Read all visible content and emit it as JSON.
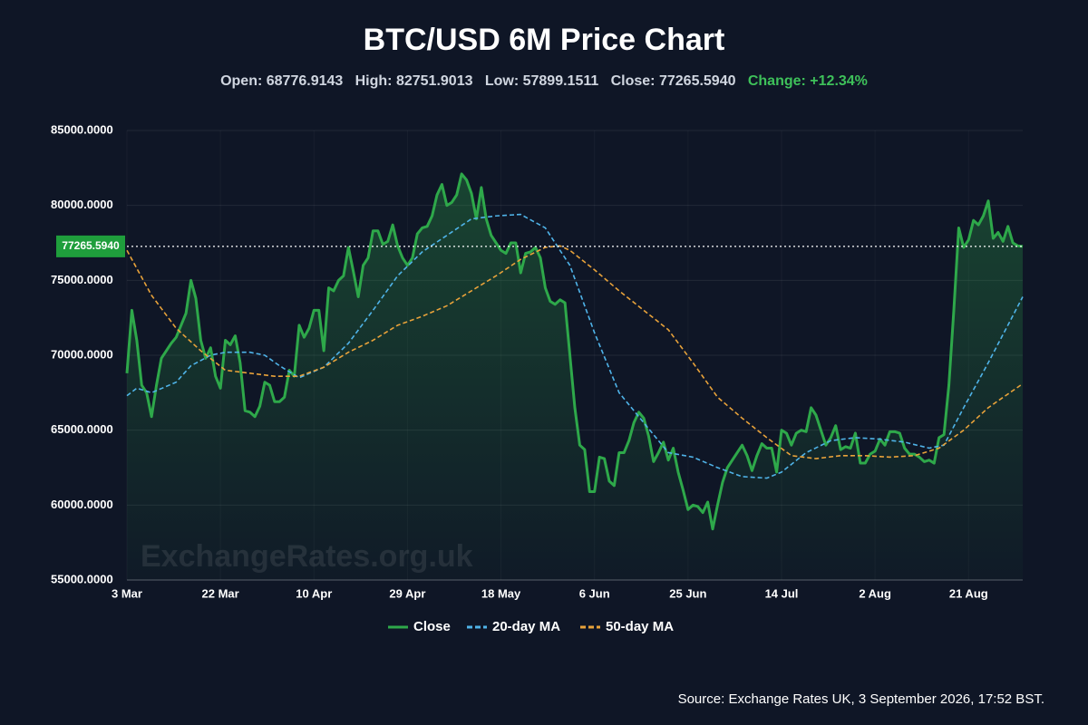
{
  "chart_data": {
    "type": "line",
    "title": "BTC/USD 6M Price Chart",
    "stats": [
      {
        "label": "Open:",
        "value": "68776.9143"
      },
      {
        "label": "High:",
        "value": "82751.9013"
      },
      {
        "label": "Low:",
        "value": "57899.1511"
      },
      {
        "label": "Close:",
        "value": "77265.5940"
      }
    ],
    "change": {
      "label": "Change:",
      "value": "+12.34%"
    },
    "watermark": "ExchangeRates.org.uk",
    "source": "Source: Exchange Rates UK, 3 September 2026, 17:52 BST.",
    "price_line": {
      "value": 77265.594,
      "label": "77265.5940"
    },
    "ylim": [
      55000,
      85000
    ],
    "yticks": [
      {
        "value": 55000,
        "label": "55000.0000"
      },
      {
        "value": 60000,
        "label": "60000.0000"
      },
      {
        "value": 65000,
        "label": "65000.0000"
      },
      {
        "value": 70000,
        "label": "70000.0000"
      },
      {
        "value": 75000,
        "label": "75000.0000"
      },
      {
        "value": 80000,
        "label": "80000.0000"
      },
      {
        "value": 85000,
        "label": "85000.0000"
      }
    ],
    "grid": true,
    "categories": [
      "3 Mar",
      null,
      null,
      null,
      null,
      null,
      null,
      null,
      null,
      null,
      null,
      null,
      null,
      null,
      null,
      null,
      null,
      null,
      null,
      "22 Mar",
      null,
      null,
      null,
      null,
      null,
      null,
      null,
      null,
      null,
      null,
      null,
      null,
      null,
      null,
      null,
      null,
      null,
      null,
      "10 Apr",
      null,
      null,
      null,
      null,
      null,
      null,
      null,
      null,
      null,
      null,
      null,
      null,
      null,
      null,
      null,
      null,
      null,
      null,
      "29 Apr",
      null,
      null,
      null,
      null,
      null,
      null,
      null,
      null,
      null,
      null,
      null,
      null,
      null,
      null,
      null,
      null,
      null,
      null,
      "18 May",
      null,
      null,
      null,
      null,
      null,
      null,
      null,
      null,
      null,
      null,
      null,
      null,
      null,
      null,
      null,
      null,
      null,
      null,
      "6 Jun",
      null,
      null,
      null,
      null,
      null,
      null,
      null,
      null,
      null,
      null,
      null,
      null,
      null,
      null,
      null,
      null,
      null,
      null,
      "25 Jun",
      null,
      null,
      null,
      null,
      null,
      null,
      null,
      null,
      null,
      null,
      null,
      null,
      null,
      null,
      null,
      null,
      null,
      null,
      "14 Jul",
      null,
      null,
      null,
      null,
      null,
      null,
      null,
      null,
      null,
      null,
      null,
      null,
      null,
      null,
      null,
      null,
      null,
      null,
      "2 Aug",
      null,
      null,
      null,
      null,
      null,
      null,
      null,
      null,
      null,
      null,
      null,
      null,
      null,
      null,
      null,
      null,
      null,
      null,
      "21 Aug",
      null,
      null,
      null,
      null,
      null,
      null,
      null,
      null,
      null,
      null,
      null
    ],
    "series": [
      {
        "name": "Close",
        "color": "#2ea84a",
        "dashed": false,
        "values": [
          68800,
          73000,
          71000,
          68000,
          67500,
          65900,
          68000,
          69800,
          70300,
          70800,
          71200,
          72000,
          72800,
          75000,
          73800,
          71000,
          69800,
          70500,
          68600,
          67800,
          71000,
          70700,
          71300,
          69500,
          66300,
          66200,
          65900,
          66600,
          68200,
          68000,
          66900,
          66900,
          67200,
          69000,
          68600,
          72000,
          71200,
          71800,
          73000,
          73000,
          70300,
          74500,
          74300,
          75000,
          75300,
          77200,
          75600,
          73900,
          76000,
          76500,
          78300,
          78300,
          77400,
          77600,
          78700,
          77300,
          76500,
          76000,
          76500,
          78100,
          78500,
          78600,
          79300,
          80700,
          81400,
          80000,
          80200,
          80700,
          82100,
          81700,
          80800,
          79100,
          81200,
          79100,
          78000,
          77500,
          77000,
          76800,
          77500,
          77500,
          75500,
          76800,
          76900,
          77200,
          76500,
          74500,
          73600,
          73400,
          73700,
          73500,
          70000,
          66500,
          64000,
          63700,
          60900,
          60900,
          63200,
          63100,
          61600,
          61300,
          63500,
          63500,
          64300,
          65500,
          66200,
          65800,
          64600,
          62900,
          63500,
          64200,
          63000,
          63800,
          62200,
          61000,
          59700,
          60000,
          59900,
          59500,
          60200,
          58400,
          60000,
          61500,
          62500,
          63000,
          63500,
          64000,
          63300,
          62300,
          63300,
          64100,
          63800,
          63800,
          62200,
          65000,
          64800,
          64000,
          64800,
          65000,
          64900,
          66500,
          66000,
          65000,
          64000,
          64500,
          65300,
          63700,
          63900,
          63800,
          64800,
          62800,
          62800,
          63400,
          63600,
          64400,
          64000,
          64900,
          64900,
          64800,
          63800,
          63400,
          63400,
          63200,
          62900,
          63000,
          62800,
          64500,
          64700,
          68000,
          73000,
          78500,
          77200,
          77700,
          79000,
          78700,
          79300,
          80300,
          77800,
          78200,
          77600,
          78600,
          77500,
          77300,
          77265.594
        ]
      },
      {
        "name": "20-day MA",
        "color": "#4fb3e8",
        "dashed": true,
        "values": [
          67300,
          67550,
          67800,
          67700,
          67600,
          67500,
          67640,
          67780,
          67920,
          68060,
          68200,
          68570,
          68930,
          69300,
          69475,
          69650,
          69825,
          70000,
          70070,
          70130,
          70200,
          70200,
          70200,
          70200,
          70200,
          70200,
          70130,
          70070,
          70000,
          69770,
          69530,
          69300,
          69100,
          68900,
          68700,
          68500,
          68640,
          68780,
          68920,
          69060,
          69200,
          69520,
          69840,
          70160,
          70480,
          70800,
          71240,
          71680,
          72120,
          72560,
          73000,
          73460,
          73920,
          74380,
          74840,
          75300,
          75620,
          75940,
          76260,
          76580,
          76900,
          77120,
          77340,
          77560,
          77780,
          78000,
          78220,
          78440,
          78660,
          78880,
          79100,
          79140,
          79180,
          79220,
          79260,
          79300,
          79320,
          79340,
          79360,
          79380,
          79400,
          79220,
          79040,
          78860,
          78680,
          78500,
          78000,
          77500,
          77000,
          76500,
          76000,
          75100,
          74200,
          73300,
          72400,
          71500,
          70700,
          69900,
          69100,
          68300,
          67500,
          67100,
          66700,
          66300,
          65900,
          65500,
          65100,
          64700,
          64300,
          63900,
          63500,
          63440,
          63380,
          63320,
          63260,
          63200,
          63060,
          62920,
          62780,
          62640,
          62500,
          62380,
          62260,
          62140,
          62020,
          61900,
          61880,
          61860,
          61840,
          61820,
          61800,
          61930,
          62070,
          62200,
          62460,
          62720,
          62980,
          63240,
          63500,
          63660,
          63820,
          63980,
          64140,
          64300,
          64340,
          64380,
          64420,
          64460,
          64500,
          64480,
          64460,
          64440,
          64420,
          64400,
          64360,
          64320,
          64280,
          64240,
          64200,
          64120,
          64040,
          63960,
          63880,
          63800,
          63870,
          63930,
          64000,
          64625,
          65250,
          65875,
          66500,
          67100,
          67700,
          68300,
          68900,
          69500,
          70130,
          70760,
          71390,
          72010,
          72640,
          73270,
          73900
        ]
      },
      {
        "name": "50-day MA",
        "color": "#e8a23a",
        "dashed": true,
        "values": [
          77000,
          76400,
          75800,
          75200,
          74600,
          74000,
          73560,
          73120,
          72680,
          72240,
          71800,
          71500,
          71200,
          70900,
          70600,
          70300,
          70040,
          69780,
          69520,
          69260,
          69000,
          68960,
          68920,
          68880,
          68840,
          68800,
          68760,
          68720,
          68680,
          68640,
          68600,
          68600,
          68600,
          68600,
          68600,
          68600,
          68720,
          68840,
          68960,
          69080,
          69200,
          69400,
          69600,
          69800,
          70000,
          70200,
          70360,
          70520,
          70680,
          70840,
          71000,
          71200,
          71400,
          71600,
          71800,
          72000,
          72120,
          72240,
          72360,
          72480,
          72600,
          72740,
          72880,
          73020,
          73160,
          73300,
          73500,
          73700,
          73900,
          74100,
          74300,
          74500,
          74700,
          74900,
          75100,
          75300,
          75520,
          75740,
          75960,
          76180,
          76400,
          76560,
          76720,
          76880,
          77040,
          77200,
          77230,
          77270,
          77300,
          77150,
          77000,
          76740,
          76480,
          76220,
          75960,
          75700,
          75420,
          75140,
          74860,
          74580,
          74300,
          74040,
          73780,
          73520,
          73260,
          73000,
          72740,
          72480,
          72220,
          71960,
          71700,
          71260,
          70820,
          70380,
          69940,
          69500,
          69040,
          68580,
          68120,
          67660,
          67200,
          66920,
          66640,
          66360,
          66080,
          65800,
          65540,
          65280,
          65020,
          64760,
          64500,
          64260,
          64020,
          63780,
          63540,
          63300,
          63260,
          63220,
          63180,
          63140,
          63100,
          63140,
          63180,
          63220,
          63260,
          63300,
          63300,
          63300,
          63300,
          63300,
          63300,
          63280,
          63260,
          63240,
          63220,
          63200,
          63220,
          63240,
          63260,
          63280,
          63300,
          63400,
          63500,
          63600,
          63700,
          63800,
          64040,
          64280,
          64520,
          64760,
          65000,
          65300,
          65600,
          65900,
          66200,
          66500,
          66730,
          66960,
          67190,
          67410,
          67640,
          67870,
          68100
        ]
      }
    ]
  }
}
